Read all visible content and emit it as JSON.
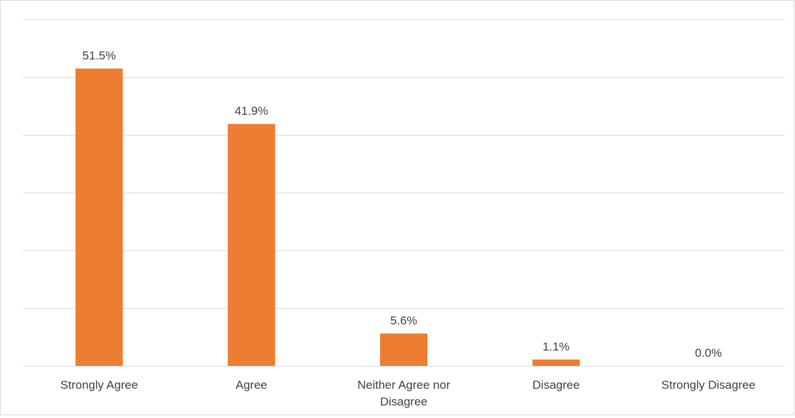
{
  "chart_data": {
    "type": "bar",
    "categories": [
      [
        "Strongly Agree"
      ],
      [
        "Agree"
      ],
      [
        "Neither Agree nor",
        "Disagree"
      ],
      [
        "Disagree"
      ],
      [
        "Strongly Disagree"
      ]
    ],
    "values": [
      51.5,
      41.9,
      5.6,
      1.1,
      0.0
    ],
    "data_labels": [
      "51.5%",
      "41.9%",
      "5.6%",
      "1.1%",
      "0.0%"
    ],
    "value_unit": "%",
    "ylim": [
      0,
      60
    ],
    "gridlines": true,
    "y_tick_labels_visible": false,
    "legend": "none",
    "colors": {
      "bar": "#ED7D31",
      "grid": "#d9d9d9",
      "text": "#404040"
    }
  }
}
